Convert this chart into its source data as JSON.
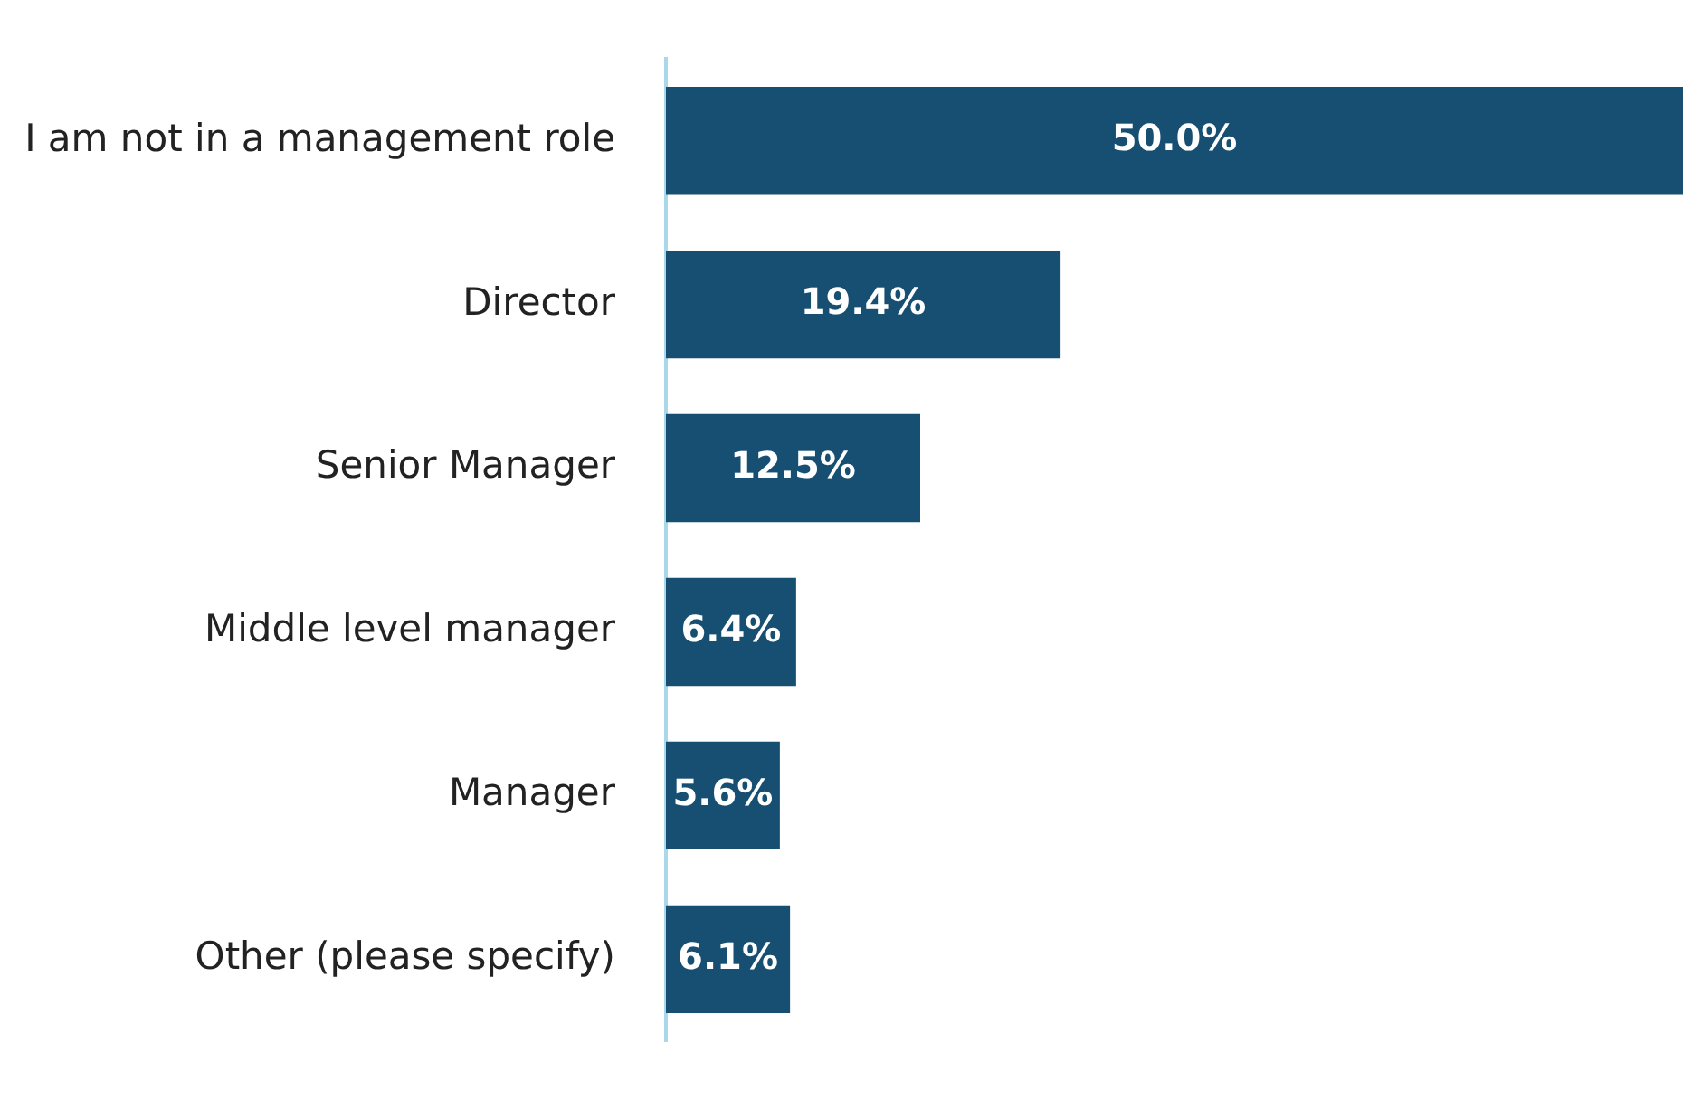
{
  "chart_data": {
    "type": "bar",
    "orientation": "horizontal",
    "categories": [
      "I am not in a management role",
      "Director",
      "Senior Manager",
      "Middle level manager",
      "Manager",
      "Other (please specify)"
    ],
    "values": [
      50.0,
      19.4,
      12.5,
      6.4,
      5.6,
      6.1
    ],
    "value_labels": [
      "50.0%",
      "19.4%",
      "12.5%",
      "6.4%",
      "5.6%",
      "6.1%"
    ],
    "color": "#174f72",
    "xlim": [
      0,
      50
    ],
    "tick_labels": "y",
    "grid": false,
    "legend": false
  }
}
